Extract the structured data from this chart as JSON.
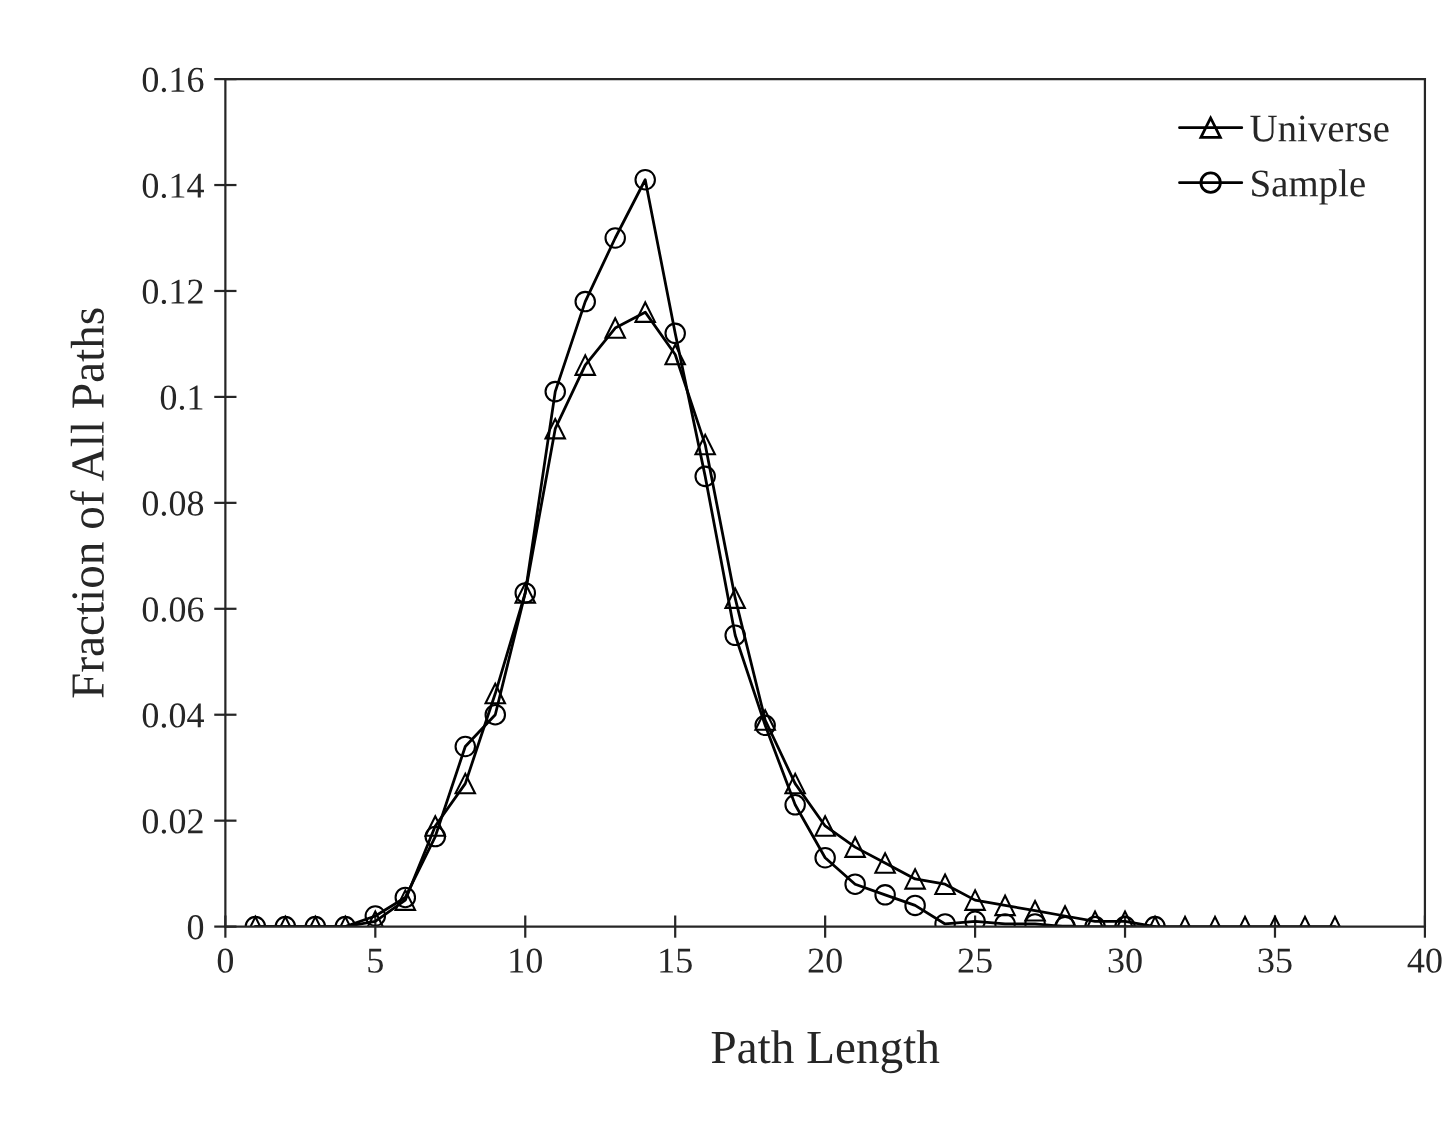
{
  "chart_data": {
    "type": "line",
    "xlabel": "Path Length",
    "ylabel": "Fraction of All Paths",
    "xlim": [
      0,
      40
    ],
    "xticks": [
      0,
      5,
      10,
      15,
      20,
      25,
      30,
      35,
      40
    ],
    "ylim": [
      0,
      0.16
    ],
    "yticks": [
      {
        "value": 0,
        "label": "0"
      },
      {
        "value": 0.02,
        "label": "0.02"
      },
      {
        "value": 0.04,
        "label": "0.04"
      },
      {
        "value": 0.06,
        "label": "0.06"
      },
      {
        "value": 0.08,
        "label": "0.08"
      },
      {
        "value": 0.1,
        "label": "0.1"
      },
      {
        "value": 0.12,
        "label": "0.12"
      },
      {
        "value": 0.14,
        "label": "0.14"
      },
      {
        "value": 0.16,
        "label": "0.16"
      }
    ],
    "legend": "top right",
    "grid": false,
    "series": [
      {
        "name": "Universe",
        "color": "#000000",
        "marker": "triangle",
        "x": [
          1,
          2,
          3,
          4,
          5,
          6,
          7,
          8,
          9,
          10,
          11,
          12,
          13,
          14,
          15,
          16,
          17,
          18,
          19,
          20,
          21,
          22,
          23,
          24,
          25,
          26,
          27,
          28,
          29,
          30,
          31,
          32,
          33,
          34,
          35,
          36,
          37
        ],
        "values": [
          0,
          0,
          0,
          0,
          0.001,
          0.005,
          0.019,
          0.027,
          0.044,
          0.063,
          0.094,
          0.106,
          0.113,
          0.116,
          0.108,
          0.091,
          0.062,
          0.039,
          0.027,
          0.019,
          0.015,
          0.012,
          0.009,
          0.008,
          0.005,
          0.004,
          0.003,
          0.002,
          0.001,
          0.001,
          0,
          0,
          0,
          0,
          0,
          0,
          0
        ]
      },
      {
        "name": "Sample",
        "color": "#000000",
        "marker": "circle",
        "x": [
          1,
          2,
          3,
          4,
          5,
          6,
          7,
          8,
          9,
          10,
          11,
          12,
          13,
          14,
          15,
          16,
          17,
          18,
          19,
          20,
          21,
          22,
          23,
          24,
          25,
          26,
          27,
          28,
          29,
          30,
          31
        ],
        "values": [
          0,
          0,
          0,
          0,
          0.002,
          0.0055,
          0.017,
          0.034,
          0.04,
          0.063,
          0.101,
          0.118,
          0.13,
          0.141,
          0.112,
          0.085,
          0.055,
          0.038,
          0.023,
          0.013,
          0.008,
          0.006,
          0.004,
          0.0005,
          0.001,
          0.0005,
          0.0005,
          0,
          0,
          0,
          0
        ]
      }
    ]
  }
}
